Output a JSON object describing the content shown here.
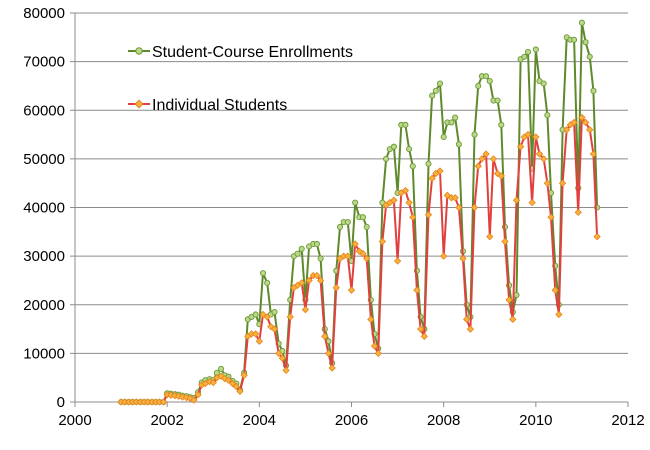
{
  "chart_data": {
    "type": "line",
    "title": "",
    "xlabel": "",
    "ylabel": "",
    "xlim": [
      2000,
      2012
    ],
    "ylim": [
      0,
      80000
    ],
    "xticks": [
      2000,
      2002,
      2004,
      2006,
      2008,
      2010,
      2012
    ],
    "yticks": [
      0,
      10000,
      20000,
      30000,
      40000,
      50000,
      60000,
      70000,
      80000
    ],
    "xtick_labels": [
      "2000",
      "2002",
      "2004",
      "2006",
      "2008",
      "2010",
      "2012"
    ],
    "ytick_labels": [
      "0",
      "10000",
      "20000",
      "30000",
      "40000",
      "50000",
      "60000",
      "70000",
      "80000"
    ],
    "grid": "horizontal",
    "legend": "top-left inside",
    "series": [
      {
        "name": "Student-Course Enrollments",
        "line_color": "#5f8a2c",
        "marker_fill": "#b9d88a",
        "marker_stroke": "#6e9a36",
        "points": [
          [
            2001.0,
            0
          ],
          [
            2001.08,
            0
          ],
          [
            2001.17,
            0
          ],
          [
            2001.25,
            0
          ],
          [
            2001.33,
            0
          ],
          [
            2001.42,
            0
          ],
          [
            2001.5,
            0
          ],
          [
            2001.58,
            0
          ],
          [
            2001.67,
            0
          ],
          [
            2001.75,
            0
          ],
          [
            2001.83,
            0
          ],
          [
            2001.92,
            0
          ],
          [
            2002.0,
            1800
          ],
          [
            2002.08,
            1700
          ],
          [
            2002.17,
            1600
          ],
          [
            2002.25,
            1500
          ],
          [
            2002.33,
            1300
          ],
          [
            2002.42,
            1200
          ],
          [
            2002.5,
            1000
          ],
          [
            2002.58,
            800
          ],
          [
            2002.67,
            2000
          ],
          [
            2002.75,
            4000
          ],
          [
            2002.83,
            4500
          ],
          [
            2002.92,
            4700
          ],
          [
            2003.0,
            4500
          ],
          [
            2003.08,
            6000
          ],
          [
            2003.17,
            6800
          ],
          [
            2003.25,
            5500
          ],
          [
            2003.33,
            5200
          ],
          [
            2003.42,
            4300
          ],
          [
            2003.5,
            3800
          ],
          [
            2003.58,
            2500
          ],
          [
            2003.67,
            6000
          ],
          [
            2003.75,
            17000
          ],
          [
            2003.83,
            17500
          ],
          [
            2003.92,
            18000
          ],
          [
            2004.0,
            16000
          ],
          [
            2004.08,
            26500
          ],
          [
            2004.17,
            24500
          ],
          [
            2004.25,
            18000
          ],
          [
            2004.33,
            18500
          ],
          [
            2004.42,
            12000
          ],
          [
            2004.5,
            10500
          ],
          [
            2004.58,
            7500
          ],
          [
            2004.67,
            21000
          ],
          [
            2004.75,
            30000
          ],
          [
            2004.83,
            30500
          ],
          [
            2004.92,
            31500
          ],
          [
            2005.0,
            21000
          ],
          [
            2005.08,
            32000
          ],
          [
            2005.17,
            32500
          ],
          [
            2005.25,
            32500
          ],
          [
            2005.33,
            29500
          ],
          [
            2005.42,
            15000
          ],
          [
            2005.5,
            12500
          ],
          [
            2005.58,
            8000
          ],
          [
            2005.67,
            27000
          ],
          [
            2005.75,
            36000
          ],
          [
            2005.83,
            37000
          ],
          [
            2005.92,
            37000
          ],
          [
            2006.0,
            29000
          ],
          [
            2006.08,
            41000
          ],
          [
            2006.17,
            38000
          ],
          [
            2006.25,
            38000
          ],
          [
            2006.33,
            36000
          ],
          [
            2006.42,
            21000
          ],
          [
            2006.5,
            14000
          ],
          [
            2006.58,
            11000
          ],
          [
            2006.67,
            41000
          ],
          [
            2006.75,
            50000
          ],
          [
            2006.83,
            52000
          ],
          [
            2006.92,
            52500
          ],
          [
            2007.0,
            43000
          ],
          [
            2007.08,
            57000
          ],
          [
            2007.17,
            57000
          ],
          [
            2007.25,
            52000
          ],
          [
            2007.33,
            48500
          ],
          [
            2007.42,
            27000
          ],
          [
            2007.5,
            17500
          ],
          [
            2007.58,
            15000
          ],
          [
            2007.67,
            49000
          ],
          [
            2007.75,
            63000
          ],
          [
            2007.83,
            64000
          ],
          [
            2007.92,
            65500
          ],
          [
            2008.0,
            54500
          ],
          [
            2008.08,
            57500
          ],
          [
            2008.17,
            57500
          ],
          [
            2008.25,
            58500
          ],
          [
            2008.33,
            53000
          ],
          [
            2008.42,
            31000
          ],
          [
            2008.5,
            20000
          ],
          [
            2008.58,
            17500
          ],
          [
            2008.67,
            55000
          ],
          [
            2008.75,
            65000
          ],
          [
            2008.83,
            67000
          ],
          [
            2008.92,
            67000
          ],
          [
            2009.0,
            66000
          ],
          [
            2009.08,
            62000
          ],
          [
            2009.17,
            62000
          ],
          [
            2009.25,
            57000
          ],
          [
            2009.33,
            36000
          ],
          [
            2009.42,
            24000
          ],
          [
            2009.5,
            18500
          ],
          [
            2009.58,
            22000
          ],
          [
            2009.67,
            70500
          ],
          [
            2009.75,
            71000
          ],
          [
            2009.83,
            72000
          ],
          [
            2009.92,
            48000
          ],
          [
            2010.0,
            72500
          ],
          [
            2010.08,
            66000
          ],
          [
            2010.17,
            65500
          ],
          [
            2010.25,
            59000
          ],
          [
            2010.33,
            43000
          ],
          [
            2010.42,
            28000
          ],
          [
            2010.5,
            20000
          ],
          [
            2010.58,
            56000
          ],
          [
            2010.67,
            75000
          ],
          [
            2010.75,
            74500
          ],
          [
            2010.83,
            74500
          ],
          [
            2010.92,
            44000
          ],
          [
            2011.0,
            78000
          ],
          [
            2011.08,
            74000
          ],
          [
            2011.17,
            71000
          ],
          [
            2011.25,
            64000
          ],
          [
            2011.33,
            40000
          ]
        ]
      },
      {
        "name": "Individual Students",
        "line_color": "#e2403e",
        "marker_fill": "#f7b23e",
        "marker_stroke": "#e8811d",
        "points": [
          [
            2001.0,
            0
          ],
          [
            2001.08,
            0
          ],
          [
            2001.17,
            0
          ],
          [
            2001.25,
            0
          ],
          [
            2001.33,
            0
          ],
          [
            2001.42,
            0
          ],
          [
            2001.5,
            0
          ],
          [
            2001.58,
            0
          ],
          [
            2001.67,
            0
          ],
          [
            2001.75,
            0
          ],
          [
            2001.83,
            0
          ],
          [
            2001.92,
            0
          ],
          [
            2002.0,
            1500
          ],
          [
            2002.08,
            1400
          ],
          [
            2002.17,
            1300
          ],
          [
            2002.25,
            1200
          ],
          [
            2002.33,
            1000
          ],
          [
            2002.42,
            900
          ],
          [
            2002.5,
            700
          ],
          [
            2002.58,
            400
          ],
          [
            2002.67,
            1500
          ],
          [
            2002.75,
            3500
          ],
          [
            2002.83,
            3800
          ],
          [
            2002.92,
            4200
          ],
          [
            2003.0,
            4000
          ],
          [
            2003.08,
            5000
          ],
          [
            2003.17,
            5300
          ],
          [
            2003.25,
            4800
          ],
          [
            2003.33,
            4500
          ],
          [
            2003.42,
            3800
          ],
          [
            2003.5,
            3200
          ],
          [
            2003.58,
            2200
          ],
          [
            2003.67,
            5500
          ],
          [
            2003.75,
            13500
          ],
          [
            2003.83,
            14000
          ],
          [
            2003.92,
            14000
          ],
          [
            2004.0,
            12500
          ],
          [
            2004.08,
            18000
          ],
          [
            2004.17,
            17500
          ],
          [
            2004.25,
            15500
          ],
          [
            2004.33,
            15000
          ],
          [
            2004.42,
            10000
          ],
          [
            2004.5,
            9000
          ],
          [
            2004.58,
            6500
          ],
          [
            2004.67,
            17500
          ],
          [
            2004.75,
            23500
          ],
          [
            2004.83,
            24000
          ],
          [
            2004.92,
            24500
          ],
          [
            2005.0,
            19000
          ],
          [
            2005.08,
            25000
          ],
          [
            2005.17,
            26000
          ],
          [
            2005.25,
            26000
          ],
          [
            2005.33,
            25000
          ],
          [
            2005.42,
            13500
          ],
          [
            2005.5,
            10000
          ],
          [
            2005.58,
            7000
          ],
          [
            2005.67,
            23500
          ],
          [
            2005.75,
            29500
          ],
          [
            2005.83,
            30000
          ],
          [
            2005.92,
            30000
          ],
          [
            2006.0,
            23000
          ],
          [
            2006.08,
            32500
          ],
          [
            2006.17,
            31000
          ],
          [
            2006.25,
            30500
          ],
          [
            2006.33,
            29500
          ],
          [
            2006.42,
            17000
          ],
          [
            2006.5,
            11500
          ],
          [
            2006.58,
            10000
          ],
          [
            2006.67,
            33000
          ],
          [
            2006.75,
            40500
          ],
          [
            2006.83,
            41000
          ],
          [
            2006.92,
            41500
          ],
          [
            2007.0,
            29000
          ],
          [
            2007.08,
            43000
          ],
          [
            2007.17,
            43500
          ],
          [
            2007.25,
            41000
          ],
          [
            2007.33,
            38000
          ],
          [
            2007.42,
            23000
          ],
          [
            2007.5,
            15000
          ],
          [
            2007.58,
            13500
          ],
          [
            2007.67,
            38500
          ],
          [
            2007.75,
            46000
          ],
          [
            2007.83,
            47000
          ],
          [
            2007.92,
            47500
          ],
          [
            2008.0,
            30000
          ],
          [
            2008.08,
            42500
          ],
          [
            2008.17,
            42000
          ],
          [
            2008.25,
            42000
          ],
          [
            2008.33,
            40000
          ],
          [
            2008.42,
            29500
          ],
          [
            2008.5,
            17000
          ],
          [
            2008.58,
            15000
          ],
          [
            2008.67,
            40000
          ],
          [
            2008.75,
            48500
          ],
          [
            2008.83,
            50000
          ],
          [
            2008.92,
            51000
          ],
          [
            2009.0,
            34000
          ],
          [
            2009.08,
            50000
          ],
          [
            2009.17,
            47000
          ],
          [
            2009.25,
            46500
          ],
          [
            2009.33,
            33000
          ],
          [
            2009.42,
            21000
          ],
          [
            2009.5,
            17000
          ],
          [
            2009.58,
            41500
          ],
          [
            2009.67,
            52500
          ],
          [
            2009.75,
            54500
          ],
          [
            2009.83,
            55000
          ],
          [
            2009.92,
            41000
          ],
          [
            2010.0,
            54500
          ],
          [
            2010.08,
            51000
          ],
          [
            2010.17,
            50000
          ],
          [
            2010.25,
            45000
          ],
          [
            2010.33,
            38000
          ],
          [
            2010.42,
            23000
          ],
          [
            2010.5,
            18000
          ],
          [
            2010.58,
            45000
          ],
          [
            2010.67,
            56000
          ],
          [
            2010.75,
            57000
          ],
          [
            2010.83,
            57500
          ],
          [
            2010.92,
            39000
          ],
          [
            2011.0,
            58500
          ],
          [
            2011.08,
            57500
          ],
          [
            2011.17,
            56000
          ],
          [
            2011.25,
            51000
          ],
          [
            2011.33,
            34000
          ]
        ]
      }
    ]
  }
}
